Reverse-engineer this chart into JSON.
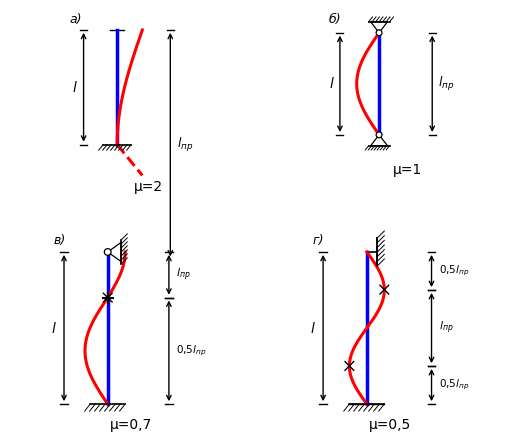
{
  "bg_color": "#ffffff",
  "panels": [
    "а)",
    "б)",
    "в)",
    "г)"
  ],
  "mu_labels": [
    "μ=2",
    "μ=1",
    "μ=0,7",
    "μ=0,5"
  ]
}
